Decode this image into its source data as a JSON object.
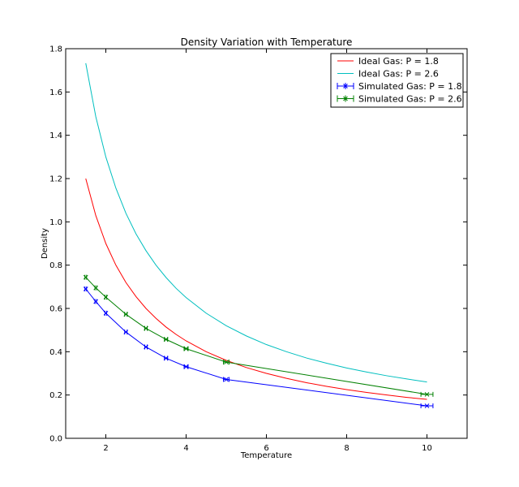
{
  "chart_data": {
    "type": "line",
    "title": "Density Variation with Temperature",
    "xlabel": "Temperature",
    "ylabel": "Density",
    "xlim": [
      1,
      11
    ],
    "ylim": [
      0.0,
      1.8
    ],
    "xticks": [
      2,
      4,
      6,
      8,
      10
    ],
    "yticks": [
      0.0,
      0.2,
      0.4,
      0.6,
      0.8,
      1.0,
      1.2,
      1.4,
      1.6,
      1.8
    ],
    "grid": false,
    "legend_position": "top-right",
    "series": [
      {
        "name": "Ideal Gas: P = 1.8",
        "style": "line",
        "color": "#ff0000",
        "x": [
          1.5,
          1.75,
          2,
          2.25,
          2.5,
          2.75,
          3,
          3.25,
          3.5,
          3.75,
          4,
          4.5,
          5,
          5.5,
          6,
          6.5,
          7,
          7.5,
          8,
          8.5,
          9,
          9.5,
          10
        ],
        "y": [
          1.2,
          1.029,
          0.9,
          0.8,
          0.72,
          0.655,
          0.6,
          0.554,
          0.514,
          0.48,
          0.45,
          0.4,
          0.36,
          0.327,
          0.3,
          0.277,
          0.257,
          0.24,
          0.225,
          0.212,
          0.2,
          0.189,
          0.18
        ]
      },
      {
        "name": "Ideal Gas: P = 2.6",
        "style": "line",
        "color": "#00bfbf",
        "x": [
          1.5,
          1.75,
          2,
          2.25,
          2.5,
          2.75,
          3,
          3.25,
          3.5,
          3.75,
          4,
          4.5,
          5,
          5.5,
          6,
          6.5,
          7,
          7.5,
          8,
          8.5,
          9,
          9.5,
          10
        ],
        "y": [
          1.733,
          1.486,
          1.3,
          1.156,
          1.04,
          0.945,
          0.867,
          0.8,
          0.743,
          0.693,
          0.65,
          0.578,
          0.52,
          0.473,
          0.433,
          0.4,
          0.371,
          0.347,
          0.325,
          0.306,
          0.289,
          0.274,
          0.26
        ]
      },
      {
        "name": "Simulated Gas: P = 1.8",
        "style": "errorbar",
        "color": "#0000ff",
        "x": [
          1.5,
          1.75,
          2,
          2.5,
          3,
          3.5,
          4,
          5,
          10
        ],
        "y": [
          0.69,
          0.632,
          0.578,
          0.491,
          0.422,
          0.37,
          0.331,
          0.272,
          0.15
        ],
        "xerr": [
          0.02,
          0.02,
          0.02,
          0.03,
          0.03,
          0.04,
          0.05,
          0.07,
          0.15
        ]
      },
      {
        "name": "Simulated Gas: P = 2.6",
        "style": "errorbar",
        "color": "#008000",
        "x": [
          1.5,
          1.75,
          2,
          2.5,
          3,
          3.5,
          4,
          5,
          10
        ],
        "y": [
          0.744,
          0.695,
          0.652,
          0.573,
          0.508,
          0.457,
          0.414,
          0.352,
          0.203
        ],
        "xerr": [
          0.02,
          0.02,
          0.02,
          0.03,
          0.03,
          0.04,
          0.05,
          0.07,
          0.15
        ]
      }
    ]
  }
}
